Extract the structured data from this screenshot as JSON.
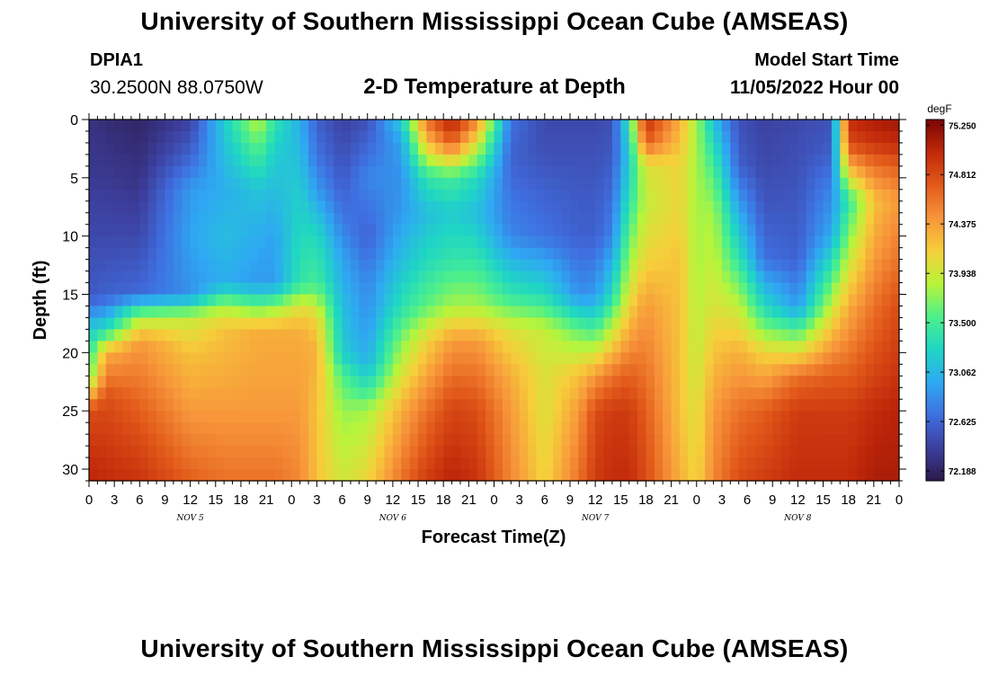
{
  "header": {
    "title": "University of Southern Mississippi Ocean Cube (AMSEAS)",
    "station_id": "DPIA1",
    "station_coords": "30.2500N  88.0750W",
    "plot_title": "2-D Temperature at Depth",
    "model_start_label": "Model Start Time",
    "model_start_value": "11/05/2022 Hour 00"
  },
  "footer": {
    "title": "University of Southern Mississippi Ocean Cube (AMSEAS)"
  },
  "colors": {
    "colormap": [
      "#2b1a4a",
      "#3d3f9e",
      "#3f6fe0",
      "#2ea9f2",
      "#1fd6c4",
      "#4df08a",
      "#b8f43a",
      "#f6cf3a",
      "#f7953a",
      "#e25a1a",
      "#c2290a",
      "#7a0403"
    ]
  },
  "chart_data": {
    "type": "heatmap",
    "xlabel": "Forecast Time(Z)",
    "ylabel": "Depth (ft)",
    "x_range_hours": [
      0,
      96
    ],
    "y_range_ft": [
      0,
      31
    ],
    "x_tick_labels": [
      "0",
      "3",
      "6",
      "9",
      "12",
      "15",
      "18",
      "21",
      "0",
      "3",
      "6",
      "9",
      "12",
      "15",
      "18",
      "21",
      "0",
      "3",
      "6",
      "9",
      "12",
      "15",
      "18",
      "21",
      "0",
      "3",
      "6",
      "9",
      "12",
      "15",
      "18",
      "21",
      "0"
    ],
    "y_ticks": [
      0,
      5,
      10,
      15,
      20,
      25,
      30
    ],
    "date_labels": [
      {
        "text": "NOV 5",
        "hour": 12
      },
      {
        "text": "NOV 6",
        "hour": 36
      },
      {
        "text": "NOV 7",
        "hour": 60
      },
      {
        "text": "NOV 8",
        "hour": 84
      }
    ],
    "colorbar": {
      "unit": "degF",
      "vmin": 72.1,
      "vmax": 75.3,
      "tick_labels": [
        "75.250",
        "74.812",
        "74.375",
        "73.938",
        "73.500",
        "73.062",
        "72.625",
        "72.188"
      ],
      "tick_values": [
        75.25,
        74.8125,
        74.375,
        73.9375,
        73.5,
        73.0625,
        72.625,
        72.1875
      ]
    },
    "field_description": "Temperature (degF) vs forecast hour and depth; cool water (~72.2) near surface in mid-day lobes, warm (~75.2) near bottom and at surface around 21Z-0Z each day",
    "profiles": [
      {
        "hour": 0,
        "depths": [
          0,
          5,
          10,
          15,
          16,
          18,
          22,
          25,
          31
        ],
        "temps": [
          72.3,
          72.35,
          72.45,
          72.55,
          72.7,
          73.2,
          73.6,
          74.8,
          75.05
        ]
      },
      {
        "hour": 2,
        "depths": [
          0,
          5,
          10,
          15,
          16,
          18,
          20,
          24,
          31
        ],
        "temps": [
          72.25,
          72.35,
          72.45,
          72.6,
          72.8,
          73.3,
          74.3,
          74.8,
          75.0
        ]
      },
      {
        "hour": 6,
        "depths": [
          0,
          5,
          10,
          15,
          16,
          17,
          19,
          25,
          31
        ],
        "temps": [
          72.2,
          72.3,
          72.45,
          72.65,
          73.3,
          73.8,
          74.4,
          74.7,
          74.95
        ]
      },
      {
        "hour": 12,
        "depths": [
          0,
          3,
          6,
          10,
          15,
          16,
          17,
          20,
          25,
          31
        ],
        "temps": [
          72.4,
          72.6,
          72.9,
          72.95,
          72.85,
          73.4,
          73.9,
          74.2,
          74.4,
          74.7
        ]
      },
      {
        "hour": 16,
        "depths": [
          0,
          3,
          6,
          10,
          14,
          16,
          18,
          25,
          31
        ],
        "temps": [
          73.2,
          73.1,
          73.0,
          73.1,
          73.0,
          73.8,
          74.2,
          74.4,
          74.6
        ]
      },
      {
        "hour": 20,
        "depths": [
          0,
          3,
          6,
          10,
          14,
          16,
          18,
          25,
          31
        ],
        "temps": [
          73.9,
          73.5,
          73.15,
          73.0,
          72.9,
          73.6,
          74.3,
          74.4,
          74.6
        ]
      },
      {
        "hour": 22,
        "depths": [
          0,
          3,
          6,
          10,
          14,
          16,
          18,
          25,
          31
        ],
        "temps": [
          73.4,
          73.2,
          73.1,
          72.95,
          72.9,
          73.7,
          74.3,
          74.4,
          74.6
        ]
      },
      {
        "hour": 25,
        "depths": [
          0,
          3,
          6,
          10,
          14,
          16,
          18,
          25,
          31
        ],
        "temps": [
          73.0,
          73.1,
          73.2,
          73.3,
          73.4,
          74.0,
          74.3,
          74.4,
          74.5
        ]
      },
      {
        "hour": 27,
        "depths": [
          0,
          3,
          6,
          10,
          14,
          17,
          20,
          25,
          31
        ],
        "temps": [
          72.6,
          72.7,
          72.9,
          73.3,
          73.5,
          74.1,
          74.3,
          74.2,
          74.2
        ]
      },
      {
        "hour": 30,
        "depths": [
          0,
          5,
          8,
          12,
          16,
          20,
          22,
          25,
          31
        ],
        "temps": [
          72.4,
          72.55,
          72.7,
          72.95,
          73.1,
          73.2,
          73.55,
          73.75,
          73.95
        ]
      },
      {
        "hour": 33,
        "depths": [
          0,
          5,
          10,
          14,
          18,
          21,
          23,
          25,
          31
        ],
        "temps": [
          72.5,
          72.8,
          72.6,
          72.8,
          72.9,
          73.05,
          73.4,
          73.8,
          74.1
        ]
      },
      {
        "hour": 37,
        "depths": [
          0,
          2,
          5,
          8,
          12,
          16,
          19,
          22,
          25,
          31
        ],
        "temps": [
          73.2,
          72.95,
          72.85,
          72.9,
          73.1,
          73.35,
          73.7,
          74.0,
          74.3,
          74.6
        ]
      },
      {
        "hour": 40,
        "depths": [
          0,
          2,
          5,
          8,
          12,
          16,
          19,
          25,
          31
        ],
        "temps": [
          74.6,
          74.2,
          73.4,
          73.1,
          73.3,
          73.6,
          74.1,
          74.6,
          74.9
        ]
      },
      {
        "hour": 43,
        "depths": [
          0,
          2,
          5,
          8,
          12,
          16,
          19,
          25,
          31
        ],
        "temps": [
          75.1,
          74.7,
          73.5,
          73.2,
          73.4,
          73.8,
          74.4,
          74.85,
          75.05
        ]
      },
      {
        "hour": 46,
        "depths": [
          0,
          2,
          5,
          8,
          12,
          16,
          19,
          25,
          31
        ],
        "temps": [
          74.5,
          74.0,
          73.3,
          73.1,
          73.4,
          73.8,
          74.4,
          74.8,
          74.95
        ]
      },
      {
        "hour": 50,
        "depths": [
          0,
          3,
          5,
          10,
          15,
          18,
          22,
          25,
          31
        ],
        "temps": [
          72.7,
          72.6,
          72.65,
          72.8,
          73.4,
          74.0,
          74.3,
          74.4,
          74.5
        ]
      },
      {
        "hour": 54,
        "depths": [
          0,
          3,
          6,
          10,
          15,
          18,
          22,
          25,
          31
        ],
        "temps": [
          72.45,
          72.5,
          72.6,
          72.7,
          73.3,
          73.9,
          74.0,
          74.0,
          74.1
        ]
      },
      {
        "hour": 58,
        "depths": [
          0,
          3,
          6,
          10,
          15,
          18,
          22,
          25,
          31
        ],
        "temps": [
          72.45,
          72.5,
          72.55,
          72.6,
          72.85,
          73.6,
          74.2,
          74.4,
          74.6
        ]
      },
      {
        "hour": 60,
        "depths": [
          0,
          3,
          6,
          10,
          15,
          18,
          22,
          25,
          31
        ],
        "temps": [
          72.45,
          72.5,
          72.55,
          72.6,
          72.9,
          73.5,
          74.4,
          74.8,
          74.9
        ]
      },
      {
        "hour": 62,
        "depths": [
          0,
          3,
          6,
          10,
          15,
          18,
          22,
          25,
          31
        ],
        "temps": [
          72.5,
          72.55,
          72.65,
          72.8,
          73.3,
          73.9,
          74.6,
          74.9,
          75.0
        ]
      },
      {
        "hour": 64,
        "depths": [
          0,
          3,
          6,
          10,
          15,
          18,
          22,
          25,
          31
        ],
        "temps": [
          73.4,
          73.2,
          73.3,
          73.6,
          74.0,
          74.3,
          74.7,
          74.9,
          75.0
        ]
      },
      {
        "hour": 66,
        "depths": [
          0,
          2,
          4,
          7,
          12,
          16,
          22,
          25,
          31
        ],
        "temps": [
          75.0,
          74.7,
          74.0,
          73.9,
          74.1,
          74.4,
          74.6,
          74.7,
          74.8
        ]
      },
      {
        "hour": 70,
        "depths": [
          0,
          2,
          4,
          8,
          12,
          16,
          22,
          25,
          31
        ],
        "temps": [
          74.3,
          74.2,
          74.1,
          74.1,
          74.2,
          74.2,
          74.2,
          74.2,
          74.3
        ]
      },
      {
        "hour": 72,
        "depths": [
          0,
          4,
          8,
          12,
          16,
          20,
          25,
          31
        ],
        "temps": [
          73.8,
          73.8,
          73.8,
          73.8,
          73.85,
          73.9,
          74.0,
          74.1
        ]
      },
      {
        "hour": 74,
        "depths": [
          0,
          4,
          8,
          12,
          16,
          20,
          25,
          31
        ],
        "temps": [
          73.1,
          73.5,
          73.8,
          73.9,
          74.0,
          74.2,
          74.4,
          74.5
        ]
      },
      {
        "hour": 77,
        "depths": [
          0,
          4,
          8,
          12,
          16,
          20,
          25,
          31
        ],
        "temps": [
          72.5,
          72.6,
          73.0,
          73.4,
          73.9,
          74.3,
          74.6,
          74.8
        ]
      },
      {
        "hour": 80,
        "depths": [
          0,
          4,
          8,
          12,
          16,
          20,
          25,
          31
        ],
        "temps": [
          72.4,
          72.45,
          72.55,
          72.7,
          73.3,
          74.1,
          74.7,
          74.9
        ]
      },
      {
        "hour": 84,
        "depths": [
          0,
          4,
          8,
          12,
          16,
          18,
          22,
          25,
          31
        ],
        "temps": [
          72.45,
          72.5,
          72.55,
          72.6,
          72.9,
          73.5,
          74.6,
          74.9,
          75.0
        ]
      },
      {
        "hour": 88,
        "depths": [
          0,
          3,
          6,
          10,
          14,
          18,
          22,
          25,
          31
        ],
        "temps": [
          72.5,
          72.6,
          72.8,
          73.0,
          73.6,
          74.2,
          74.7,
          74.9,
          75.0
        ]
      },
      {
        "hour": 90,
        "depths": [
          0,
          2,
          4,
          7,
          12,
          16,
          22,
          25,
          31
        ],
        "temps": [
          75.0,
          74.8,
          74.3,
          73.4,
          73.9,
          74.3,
          74.7,
          74.9,
          75.0
        ]
      },
      {
        "hour": 93,
        "depths": [
          0,
          2,
          4,
          7,
          12,
          16,
          22,
          25,
          31
        ],
        "temps": [
          75.1,
          74.95,
          74.6,
          74.2,
          74.4,
          74.6,
          74.85,
          75.0,
          75.1
        ]
      },
      {
        "hour": 96,
        "depths": [
          0,
          2,
          4,
          7,
          12,
          16,
          22,
          25,
          31
        ],
        "temps": [
          75.15,
          75.0,
          74.7,
          74.4,
          74.6,
          74.8,
          74.95,
          75.05,
          75.1
        ]
      }
    ]
  }
}
